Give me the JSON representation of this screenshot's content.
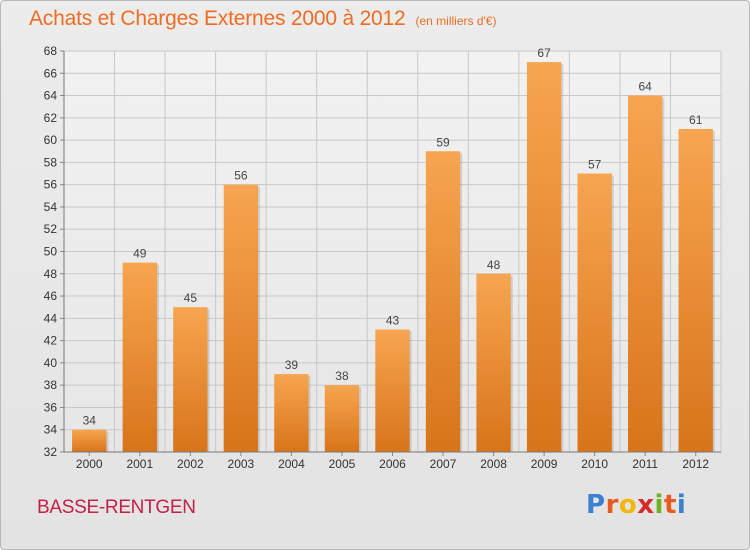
{
  "header": {
    "title": "Achats et Charges Externes 2000 à 2012",
    "unit": "(en milliers d'€)"
  },
  "footer": {
    "commune": "BASSE-RENTGEN",
    "logo": "Proxiti",
    "logo_colors": [
      "#3b7fd0",
      "#e85a20",
      "#f2b705",
      "#d62a2a",
      "#6fb11f",
      "#e85a20",
      "#3b7fd0"
    ]
  },
  "chart_data": {
    "type": "bar",
    "title": "Achats et Charges Externes 2000 à 2012",
    "subtitle": "(en milliers d'€)",
    "categories": [
      "2000",
      "2001",
      "2002",
      "2003",
      "2004",
      "2005",
      "2006",
      "2007",
      "2008",
      "2009",
      "2010",
      "2011",
      "2012"
    ],
    "values": [
      34,
      49,
      45,
      56,
      39,
      38,
      43,
      59,
      48,
      67,
      57,
      64,
      61
    ],
    "ylim": [
      32,
      68
    ],
    "yticks": [
      32,
      34,
      36,
      38,
      40,
      42,
      44,
      46,
      48,
      50,
      52,
      54,
      56,
      58,
      60,
      62,
      64,
      66,
      68
    ],
    "grid": true,
    "data_labels": true,
    "bar_color_top": "#f7a550",
    "bar_color_bottom": "#d8741a",
    "grid_color": "#c8c8c8"
  }
}
